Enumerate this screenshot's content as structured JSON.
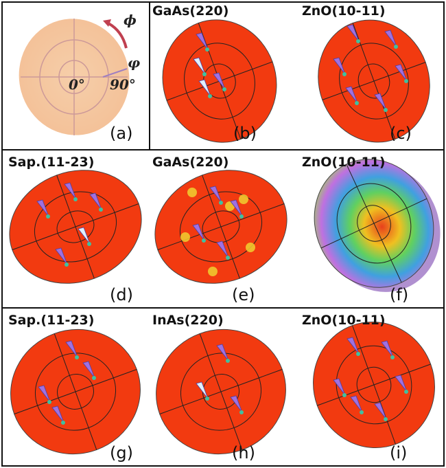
{
  "figure": {
    "panel_a": {
      "phi_upper": "ϕ",
      "phi_lower": "φ",
      "angle_0": "0°",
      "angle_90": "90°",
      "label": "(a)"
    },
    "panels": [
      {
        "title": "GaAs(220)",
        "label": "(b)"
      },
      {
        "title": "ZnO(10-11)",
        "label": "(c)"
      },
      {
        "title": "Sap.(11-23)",
        "label": "(d)"
      },
      {
        "title": "GaAs(220)",
        "label": "(e)"
      },
      {
        "title": "ZnO(10-11)",
        "label": "(f)"
      },
      {
        "title": "Sap.(11-23)",
        "label": "(g)"
      },
      {
        "title": "InAs(220)",
        "label": "(h)"
      },
      {
        "title": "ZnO(10-11)",
        "label": "(i)"
      }
    ]
  }
}
